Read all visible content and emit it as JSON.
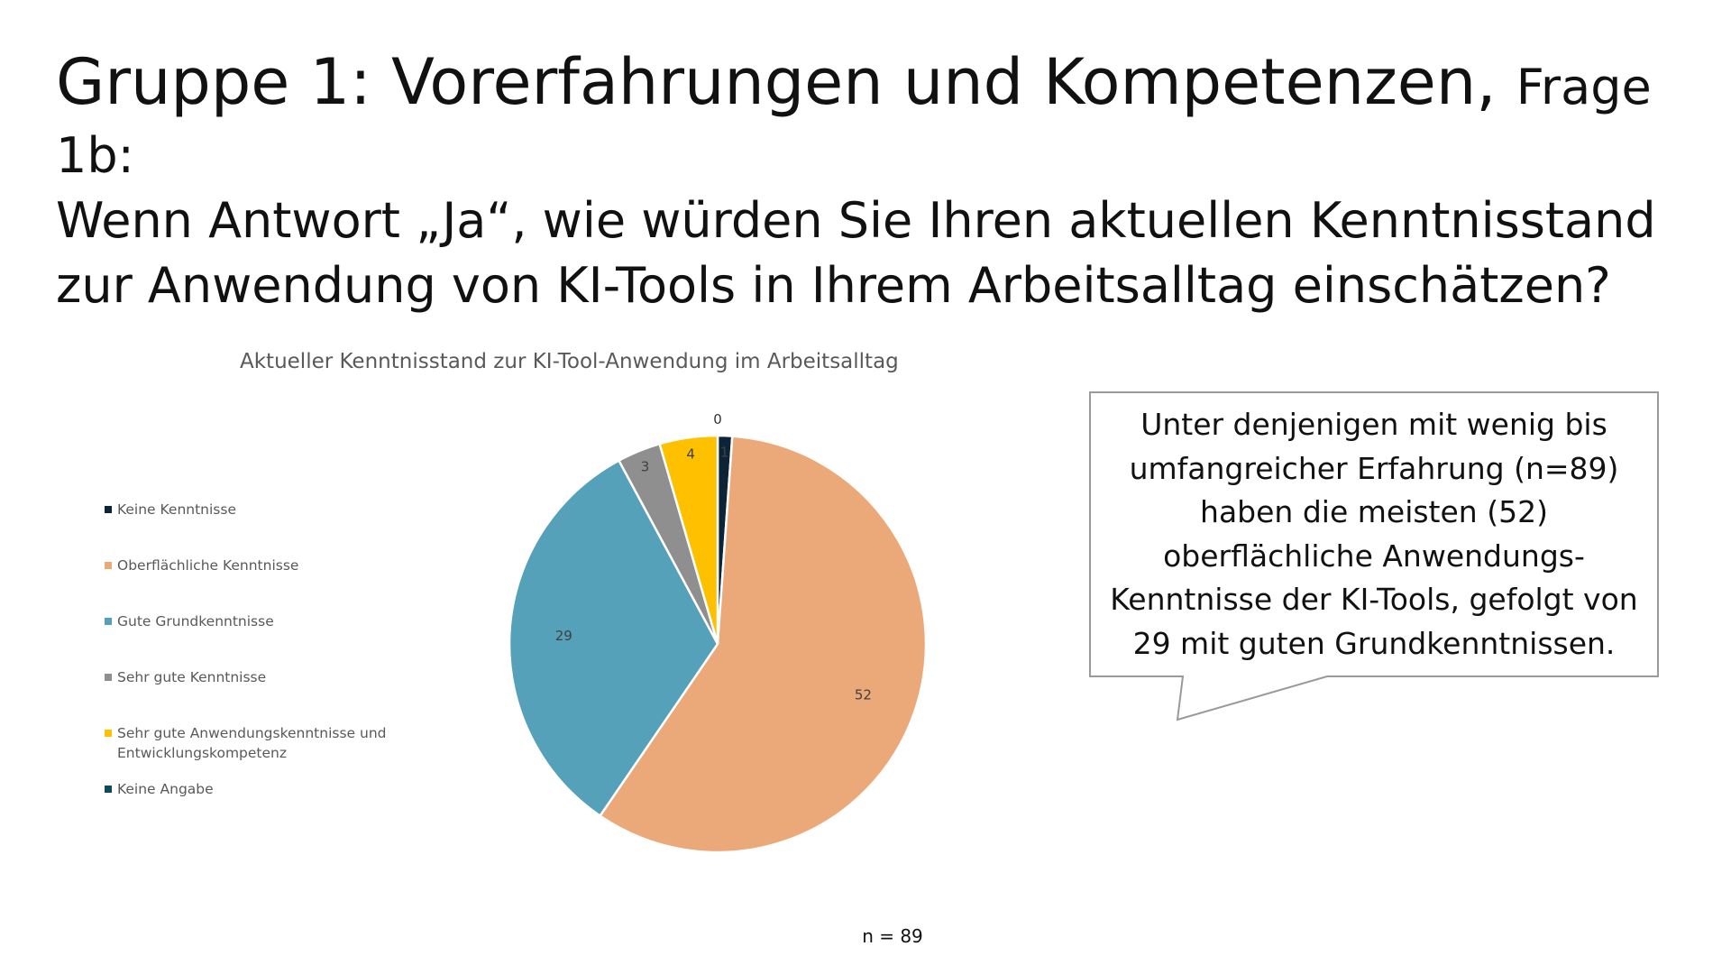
{
  "slide": {
    "title_main": "Gruppe 1: Vorerfahrungen und Kompetenzen,",
    "title_frage": "Frage 1b:",
    "question": "Wenn Antwort „Ja“, wie würden Sie Ihren aktuellen Kenntnisstand zur Anwendung von KI-Tools in Ihrem Arbeitsalltag einschätzen?"
  },
  "callout": {
    "text": "Unter denjenigen mit wenig bis umfangreicher Erfahrung (n=89) haben die meisten (52) oberflächliche Anwendungs-Kenntnisse der KI-Tools, gefolgt von 29 mit guten Grundkenntnissen."
  },
  "footnote": "n = 89",
  "chart_data": {
    "type": "pie",
    "title": "Aktueller Kenntnisstand zur KI-Tool-Anwendung im Arbeitsalltag",
    "legend_position": "left",
    "categories": [
      "Keine Kenntnisse",
      "Oberflächliche Kenntnisse",
      "Gute Grundkenntnisse",
      "Sehr gute Kenntnisse",
      "Sehr gute Anwendungskenntnisse und Entwicklungskompetenz",
      "Keine Angabe"
    ],
    "values": [
      1,
      52,
      29,
      3,
      4,
      0
    ],
    "data_labels": [
      "1",
      "52",
      "29",
      "3",
      "4",
      "0"
    ],
    "colors": [
      "#0d2336",
      "#eba97a",
      "#55a1b9",
      "#8f8f8f",
      "#ffc000",
      "#0e4a5c"
    ]
  }
}
